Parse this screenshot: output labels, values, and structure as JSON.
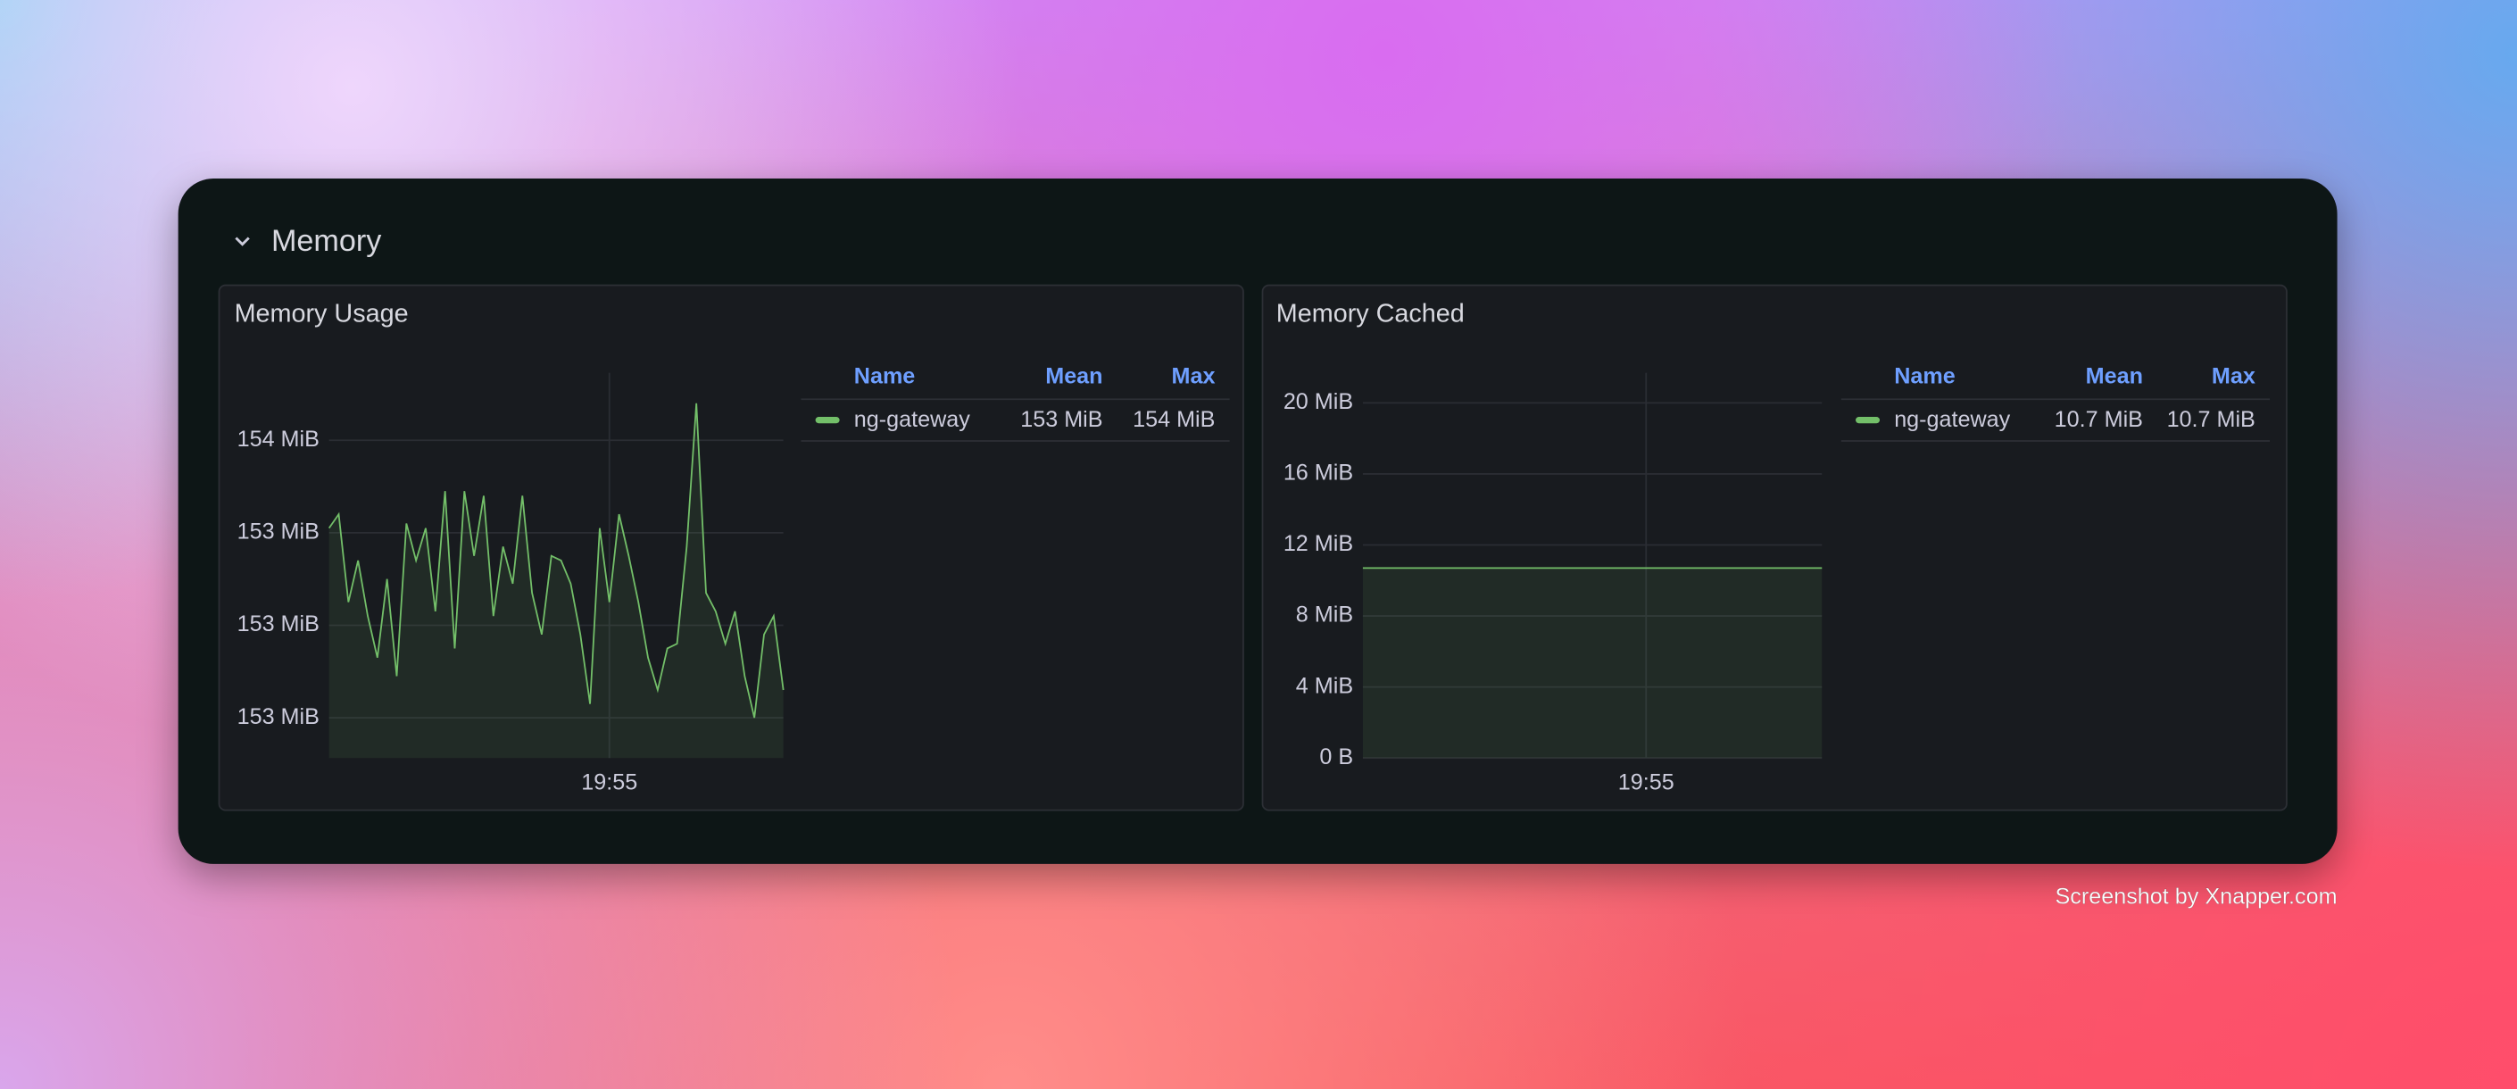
{
  "section_title": "Memory",
  "watermark": "Screenshot by Xnapper.com",
  "chart_data": [
    {
      "type": "line",
      "title": "Memory Usage",
      "x": [
        71526,
        71532,
        71538,
        71544,
        71550,
        71556,
        71562,
        71568,
        71574,
        71580,
        71586,
        71592,
        71598,
        71604,
        71610,
        71616,
        71622,
        71628,
        71634,
        71640,
        71646,
        71652,
        71658,
        71664,
        71670,
        71676,
        71682,
        71688,
        71694,
        71700,
        71706,
        71712,
        71718,
        71724,
        71730,
        71736,
        71742,
        71748,
        71754,
        71760,
        71766,
        71772,
        71778,
        71784,
        71790,
        71796,
        71802,
        71808
      ],
      "xlim": [
        71526,
        71808
      ],
      "xticks": [
        {
          "value": 71700,
          "label": "19:55"
        }
      ],
      "ylim": [
        152.913,
        153.746
      ],
      "yticks": [
        {
          "value": 153.0,
          "label": "153 MiB"
        },
        {
          "value": 153.2,
          "label": "153 MiB"
        },
        {
          "value": 153.4,
          "label": "153 MiB"
        },
        {
          "value": 153.6,
          "label": "154 MiB"
        }
      ],
      "grid": true,
      "series": [
        {
          "name": "ng-gateway",
          "color": "#73bf69",
          "values": [
            153.41,
            153.44,
            153.25,
            153.34,
            153.22,
            153.13,
            153.3,
            153.09,
            153.42,
            153.34,
            153.41,
            153.23,
            153.49,
            153.15,
            153.49,
            153.35,
            153.48,
            153.22,
            153.37,
            153.29,
            153.48,
            153.27,
            153.18,
            153.35,
            153.34,
            153.29,
            153.18,
            153.03,
            153.41,
            153.25,
            153.44,
            153.35,
            153.25,
            153.13,
            153.06,
            153.15,
            153.16,
            153.37,
            153.68,
            153.27,
            153.23,
            153.16,
            153.23,
            153.09,
            153.0,
            153.18,
            153.22,
            153.06
          ]
        }
      ],
      "legend_table": {
        "headers": [
          "Name",
          "Mean",
          "Max"
        ],
        "mean": "153 MiB",
        "max": "154 MiB"
      }
    },
    {
      "type": "line",
      "title": "Memory Cached",
      "x": [
        71526,
        71532,
        71538,
        71544,
        71550,
        71556,
        71562,
        71568,
        71574,
        71580,
        71586,
        71592,
        71598,
        71604,
        71610,
        71616,
        71622,
        71628,
        71634,
        71640,
        71646,
        71652,
        71658,
        71664,
        71670,
        71676,
        71682,
        71688,
        71694,
        71700,
        71706,
        71712,
        71718,
        71724,
        71730,
        71736,
        71742,
        71748,
        71754,
        71760,
        71766,
        71772,
        71778,
        71784,
        71790,
        71796,
        71802,
        71808
      ],
      "xlim": [
        71526,
        71808
      ],
      "xticks": [
        {
          "value": 71700,
          "label": "19:55"
        }
      ],
      "ylim": [
        0,
        21.7
      ],
      "yticks": [
        {
          "value": 0,
          "label": "0 B"
        },
        {
          "value": 4,
          "label": "4 MiB"
        },
        {
          "value": 8,
          "label": "8 MiB"
        },
        {
          "value": 12,
          "label": "12 MiB"
        },
        {
          "value": 16,
          "label": "16 MiB"
        },
        {
          "value": 20,
          "label": "20 MiB"
        }
      ],
      "grid": true,
      "series": [
        {
          "name": "ng-gateway",
          "color": "#73bf69",
          "values": [
            10.7,
            10.7,
            10.7,
            10.7,
            10.7,
            10.7,
            10.7,
            10.7,
            10.7,
            10.7,
            10.7,
            10.7,
            10.7,
            10.7,
            10.7,
            10.7,
            10.7,
            10.7,
            10.7,
            10.7,
            10.7,
            10.7,
            10.7,
            10.7,
            10.7,
            10.7,
            10.7,
            10.7,
            10.7,
            10.7,
            10.7,
            10.7,
            10.7,
            10.7,
            10.7,
            10.7,
            10.7,
            10.7,
            10.7,
            10.7,
            10.7,
            10.7,
            10.7,
            10.7,
            10.7,
            10.7,
            10.7,
            10.7
          ]
        }
      ],
      "legend_table": {
        "headers": [
          "Name",
          "Mean",
          "Max"
        ],
        "mean": "10.7 MiB",
        "max": "10.7 MiB"
      }
    }
  ]
}
